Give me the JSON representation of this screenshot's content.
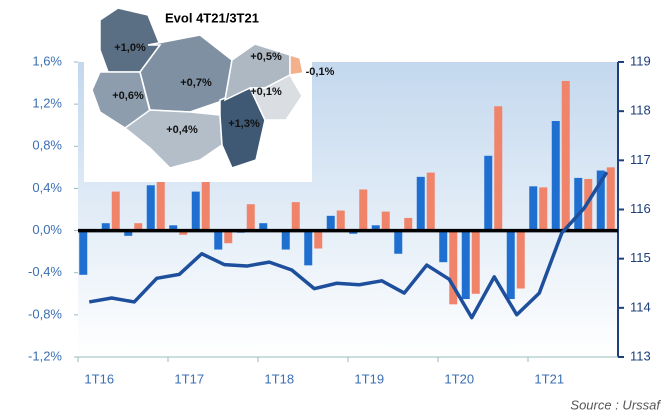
{
  "chart_data": {
    "type": "bar",
    "categories": [
      "1T16",
      null,
      null,
      null,
      "1T17",
      null,
      null,
      null,
      "1T18",
      null,
      null,
      null,
      "1T19",
      null,
      null,
      null,
      "1T20",
      null,
      null,
      null,
      "1T21",
      null,
      null,
      null
    ],
    "series": [
      {
        "color": "#1f6fd1",
        "values": [
          -0.42,
          0.07,
          -0.05,
          0.43,
          0.05,
          0.37,
          -0.18,
          -0.02,
          0.07,
          -0.18,
          -0.33,
          0.14,
          -0.03,
          0.05,
          -0.22,
          0.51,
          -0.3,
          -0.65,
          0.71,
          -0.65,
          0.42,
          1.04,
          0.5,
          0.57
        ]
      },
      {
        "color": "#f0846a",
        "values": [
          0.01,
          0.37,
          0.07,
          0.5,
          -0.04,
          0.5,
          -0.12,
          0.25,
          0.01,
          0.27,
          -0.17,
          0.19,
          0.39,
          0.18,
          0.12,
          0.55,
          -0.7,
          -0.6,
          1.18,
          -0.55,
          0.41,
          1.42,
          0.49,
          0.6
        ]
      },
      {
        "type": "line",
        "axis": "y2",
        "color": "#1e4f9c",
        "values": [
          114.12,
          114.2,
          114.12,
          114.6,
          114.68,
          115.1,
          114.88,
          114.85,
          114.93,
          114.77,
          114.39,
          114.5,
          114.47,
          114.55,
          114.3,
          114.87,
          114.58,
          113.8,
          114.63,
          113.86,
          114.3,
          115.52,
          116.03,
          116.76
        ]
      }
    ],
    "ylim": [
      -1.2,
      1.6
    ],
    "yticks": [
      {
        "value": -1.2,
        "label": "-1,2%"
      },
      {
        "value": -0.8,
        "label": "-0,8%"
      },
      {
        "value": -0.4,
        "label": "-0,4%"
      },
      {
        "value": 0,
        "label": "0,0%"
      },
      {
        "value": 0.4,
        "label": "0,4%"
      },
      {
        "value": 0.8,
        "label": "0,8%"
      },
      {
        "value": 1.2,
        "label": "1,2%"
      },
      {
        "value": 1.6,
        "label": "1,6%"
      }
    ],
    "y2lim": [
      113,
      119
    ],
    "y2ticks": [
      113,
      114,
      115,
      116,
      117,
      118,
      119
    ]
  },
  "map": {
    "title": "Evol 4T21/3T21",
    "regions": [
      {
        "label": "+1,0%",
        "color": "#5a6f84"
      },
      {
        "label": "+0,6%",
        "color": "#8d9dad"
      },
      {
        "label": "+0,7%",
        "color": "#7f90a2"
      },
      {
        "label": "+0,4%",
        "color": "#b3bec9"
      },
      {
        "label": "+1,3%",
        "color": "#3f5873"
      },
      {
        "label": "+0,5%",
        "color": "#aeb8c3"
      },
      {
        "label": "+0,1%",
        "color": "#dadee2"
      },
      {
        "label": "-0,1%",
        "color": "#f4b08a"
      }
    ]
  },
  "source": "Source : Urssaf"
}
